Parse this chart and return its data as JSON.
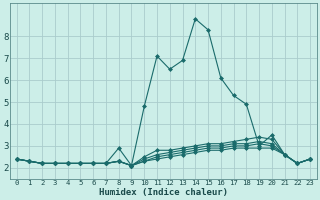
{
  "xlabel": "Humidex (Indice chaleur)",
  "background_color": "#cceee8",
  "grid_color": "#aacccc",
  "line_color": "#1a6b6b",
  "x_values": [
    0,
    1,
    2,
    3,
    4,
    5,
    6,
    7,
    8,
    9,
    10,
    11,
    12,
    13,
    14,
    15,
    16,
    17,
    18,
    19,
    20,
    21,
    22,
    23
  ],
  "series": [
    [
      2.4,
      2.3,
      2.2,
      2.2,
      2.2,
      2.2,
      2.2,
      2.2,
      2.9,
      2.1,
      4.8,
      7.1,
      6.5,
      6.9,
      8.8,
      8.3,
      6.1,
      5.3,
      4.9,
      3.0,
      3.5,
      2.6,
      2.2,
      2.4
    ],
    [
      2.4,
      2.3,
      2.2,
      2.2,
      2.2,
      2.2,
      2.2,
      2.2,
      2.3,
      2.1,
      2.5,
      2.8,
      2.8,
      2.9,
      3.0,
      3.1,
      3.1,
      3.2,
      3.3,
      3.4,
      3.3,
      2.6,
      2.2,
      2.4
    ],
    [
      2.4,
      2.3,
      2.2,
      2.2,
      2.2,
      2.2,
      2.2,
      2.2,
      2.3,
      2.1,
      2.4,
      2.6,
      2.7,
      2.8,
      2.9,
      3.0,
      3.0,
      3.1,
      3.1,
      3.2,
      3.1,
      2.6,
      2.2,
      2.4
    ],
    [
      2.4,
      2.3,
      2.2,
      2.2,
      2.2,
      2.2,
      2.2,
      2.2,
      2.3,
      2.1,
      2.3,
      2.5,
      2.6,
      2.7,
      2.8,
      2.9,
      2.9,
      3.0,
      3.0,
      3.1,
      3.0,
      2.6,
      2.2,
      2.4
    ],
    [
      2.4,
      2.3,
      2.2,
      2.2,
      2.2,
      2.2,
      2.2,
      2.2,
      2.3,
      2.1,
      2.3,
      2.4,
      2.5,
      2.6,
      2.7,
      2.8,
      2.8,
      2.9,
      2.9,
      2.9,
      2.9,
      2.6,
      2.2,
      2.4
    ]
  ],
  "xlim": [
    -0.5,
    23.5
  ],
  "ylim": [
    1.5,
    9.5
  ],
  "yticks": [
    2,
    3,
    4,
    5,
    6,
    7,
    8
  ],
  "xticks": [
    0,
    1,
    2,
    3,
    4,
    5,
    6,
    7,
    8,
    9,
    10,
    11,
    12,
    13,
    14,
    15,
    16,
    17,
    18,
    19,
    20,
    21,
    22,
    23
  ],
  "marker": "D",
  "marker_size": 2.0,
  "line_width": 0.8
}
